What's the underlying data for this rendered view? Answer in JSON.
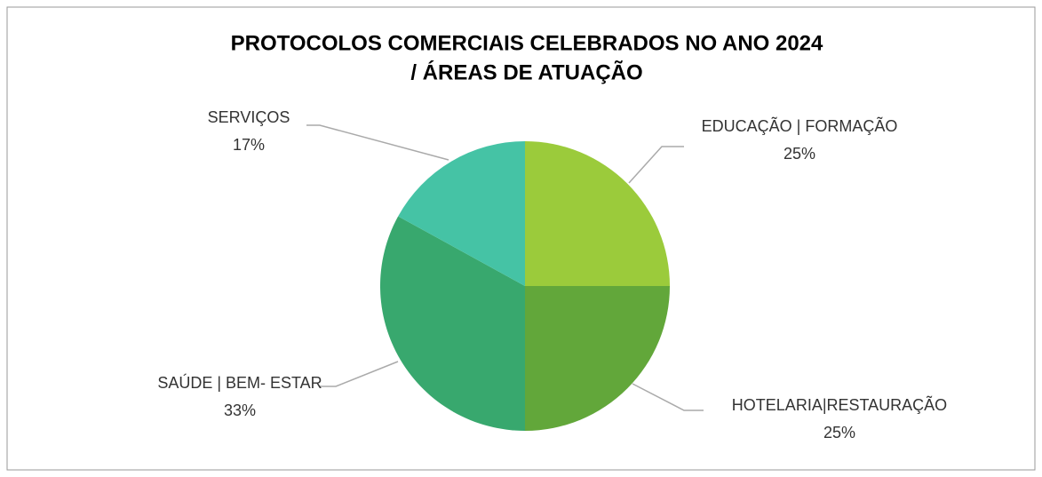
{
  "chart_data": {
    "type": "pie",
    "title": [
      "PROTOCOLOS COMERCIAIS CELEBRADOS NO ANO 2024",
      "/ ÁREAS DE ATUAÇÃO"
    ],
    "categories": [
      "EDUCAÇÃO | FORMAÇÃO",
      "HOTELARIA|RESTAURAÇÃO",
      "SAÚDE | BEM- ESTAR",
      "SERVIÇOS"
    ],
    "values": [
      25,
      25,
      33,
      17
    ],
    "value_labels": [
      "25%",
      "25%",
      "33%",
      "17%"
    ],
    "colors": [
      "#9bcb3b",
      "#62a73a",
      "#38a86e",
      "#45c3a5"
    ]
  }
}
